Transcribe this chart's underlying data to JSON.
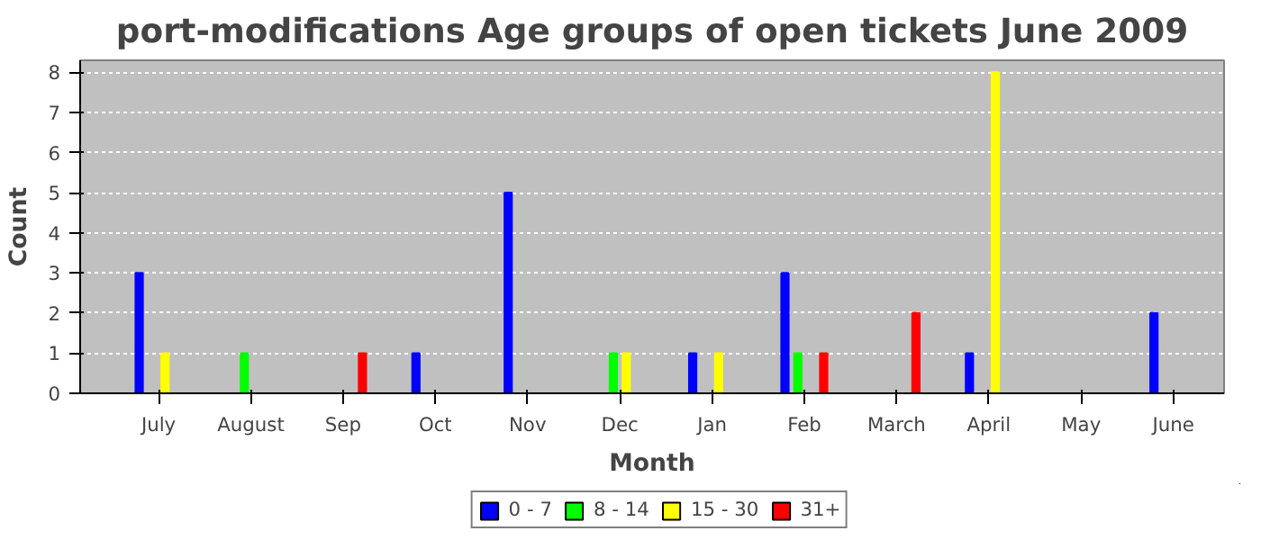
{
  "chart_data": {
    "type": "bar",
    "title": "port-modifications Age groups of open tickets June 2009",
    "xlabel": "Month",
    "ylabel": "Count",
    "categories": [
      "July",
      "August",
      "Sep",
      "Oct",
      "Nov",
      "Dec",
      "Jan",
      "Feb",
      "March",
      "April",
      "May",
      "June"
    ],
    "series": [
      {
        "name": "0 - 7",
        "color": "#0000ff",
        "values": [
          3,
          0,
          0,
          1,
          5,
          0,
          1,
          3,
          0,
          1,
          0,
          2
        ]
      },
      {
        "name": "8 - 14",
        "color": "#00ff00",
        "values": [
          0,
          1,
          0,
          0,
          0,
          1,
          0,
          1,
          0,
          0,
          0,
          0
        ]
      },
      {
        "name": "15 - 30",
        "color": "#ffff00",
        "values": [
          1,
          0,
          0,
          0,
          0,
          1,
          1,
          0,
          0,
          8,
          0,
          0
        ]
      },
      {
        "name": "31+",
        "color": "#ff0000",
        "values": [
          0,
          0,
          1,
          0,
          0,
          0,
          0,
          1,
          2,
          0,
          0,
          0
        ]
      }
    ],
    "ylim": [
      0,
      8.3
    ],
    "yticks": [
      0,
      1,
      2,
      3,
      4,
      5,
      6,
      7,
      8
    ],
    "grid": "y",
    "legend": "bottom"
  }
}
